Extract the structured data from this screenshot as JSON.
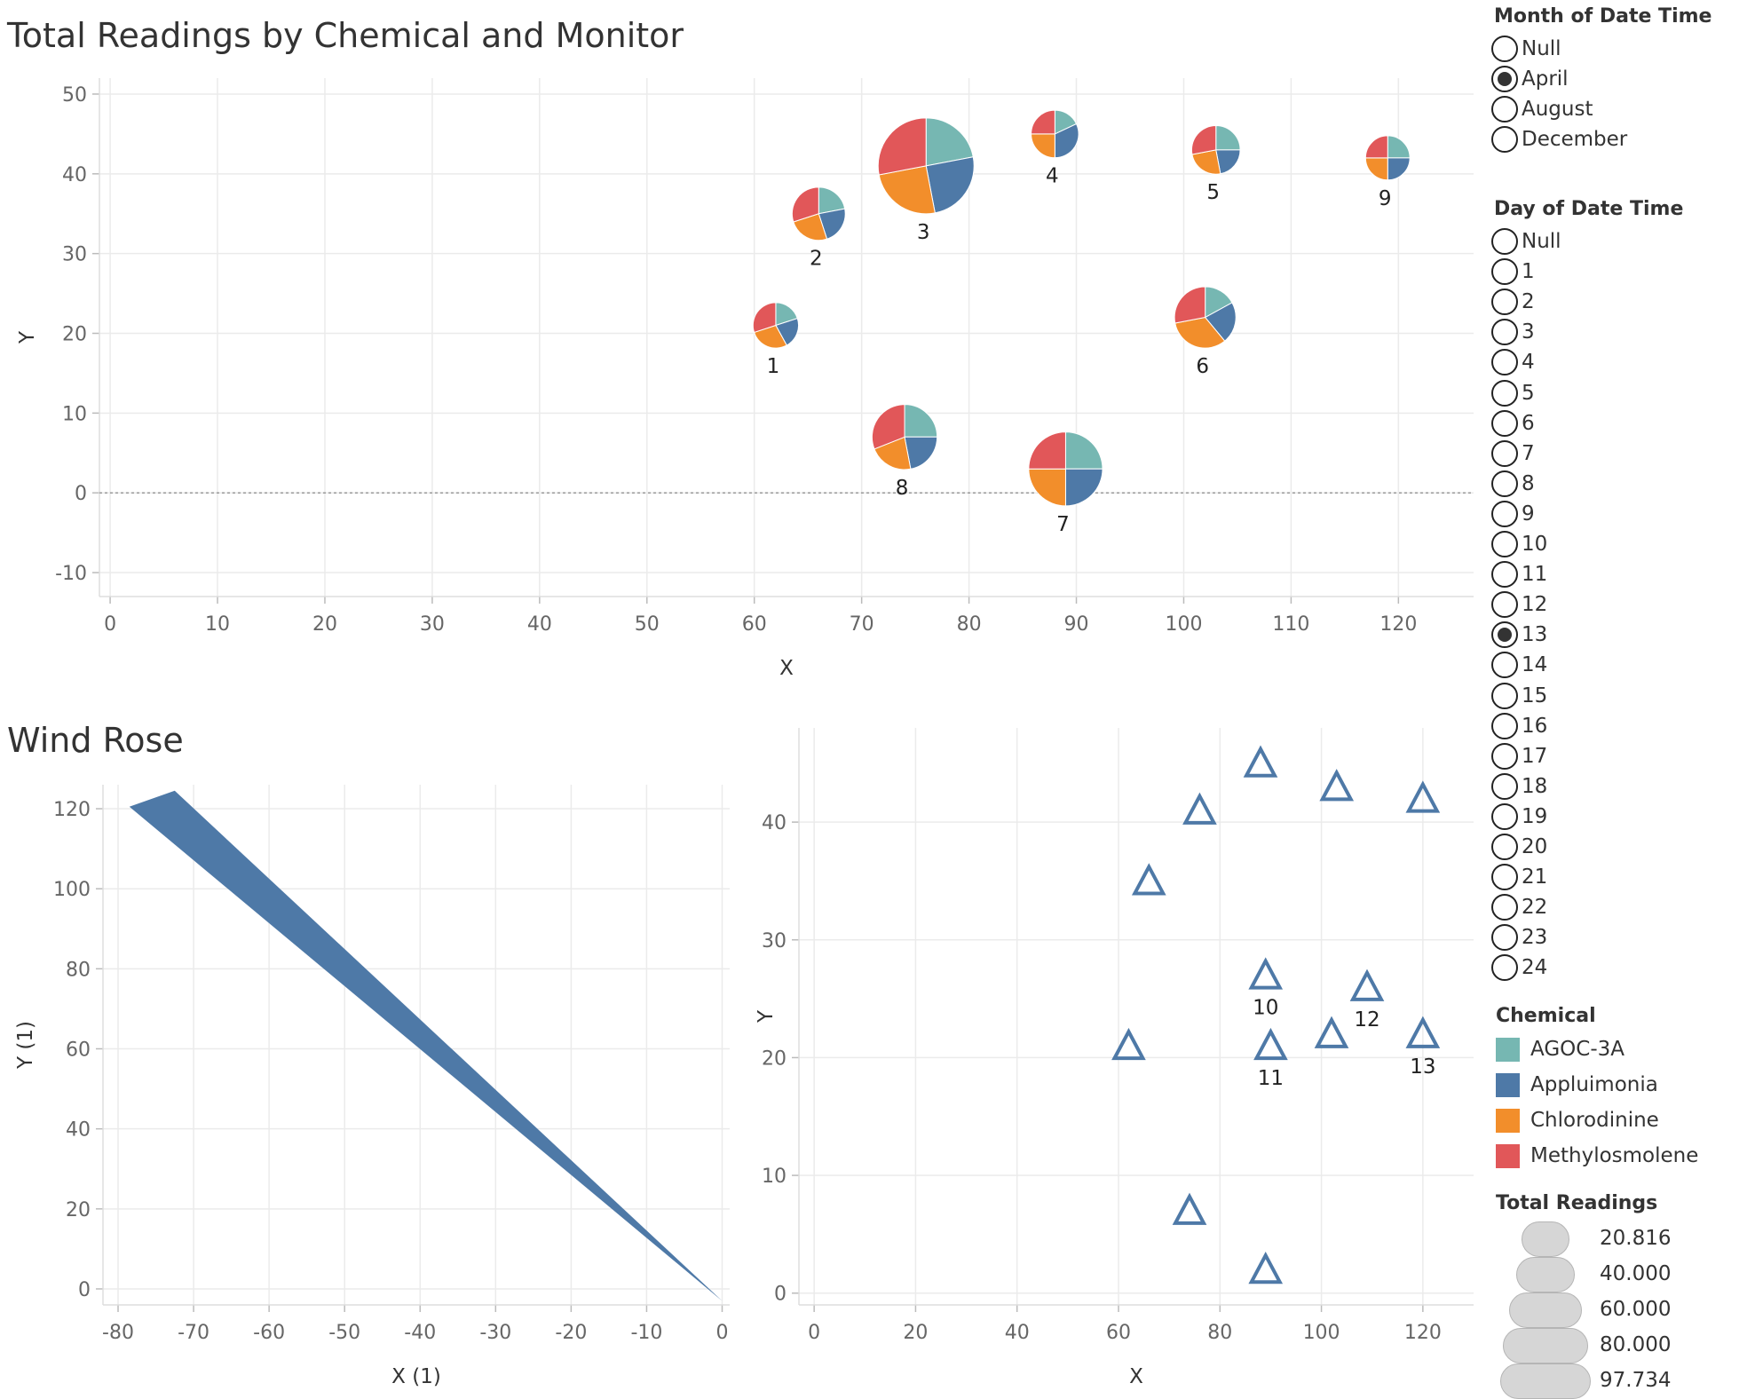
{
  "titles": {
    "top": "Total Readings by Chemical and Monitor",
    "bottom": "Wind Rose"
  },
  "colors": {
    "AGOC-3A": "#76b7b2",
    "Appluimonia": "#4e79a7",
    "Chlorodinine": "#f28e2b",
    "Methylosmolene": "#e15759",
    "wind": "#4e79a7",
    "triangle": "#4e79a7",
    "grid": "#ebebeb",
    "axis_text": "#666666"
  },
  "chart_data": [
    {
      "type": "scatter",
      "subtype": "pie-markers",
      "title": "Total Readings by Chemical and Monitor",
      "xlabel": "X",
      "ylabel": "Y",
      "xlim": [
        -1,
        127
      ],
      "ylim": [
        -13,
        52
      ],
      "xticks": [
        "0",
        "10",
        "20",
        "30",
        "40",
        "50",
        "60",
        "70",
        "80",
        "90",
        "100",
        "110",
        "120"
      ],
      "yticks": [
        "-10",
        "0",
        "10",
        "20",
        "30",
        "40",
        "50"
      ],
      "zero_line": true,
      "series_order": [
        "AGOC-3A",
        "Appluimonia",
        "Chlorodinine",
        "Methylosmolene"
      ],
      "points": [
        {
          "label": "1",
          "x": 62,
          "y": 21,
          "total": 22,
          "shares": [
            0.2,
            0.22,
            0.28,
            0.3
          ]
        },
        {
          "label": "2",
          "x": 66,
          "y": 35,
          "total": 30,
          "shares": [
            0.22,
            0.23,
            0.25,
            0.3
          ]
        },
        {
          "label": "3",
          "x": 76,
          "y": 41,
          "total": 97.734,
          "shares": [
            0.22,
            0.25,
            0.25,
            0.28
          ]
        },
        {
          "label": "4",
          "x": 88,
          "y": 45,
          "total": 24,
          "shares": [
            0.18,
            0.32,
            0.25,
            0.25
          ]
        },
        {
          "label": "5",
          "x": 103,
          "y": 43,
          "total": 25,
          "shares": [
            0.25,
            0.22,
            0.25,
            0.28
          ]
        },
        {
          "label": "6",
          "x": 102,
          "y": 22,
          "total": 40,
          "shares": [
            0.17,
            0.22,
            0.33,
            0.28
          ]
        },
        {
          "label": "7",
          "x": 89,
          "y": 3,
          "total": 58,
          "shares": [
            0.25,
            0.25,
            0.25,
            0.25
          ]
        },
        {
          "label": "8",
          "x": 74,
          "y": 7,
          "total": 45,
          "shares": [
            0.25,
            0.22,
            0.22,
            0.31
          ]
        },
        {
          "label": "9",
          "x": 119,
          "y": 42,
          "total": 20.816,
          "shares": [
            0.25,
            0.25,
            0.25,
            0.25
          ]
        }
      ]
    },
    {
      "type": "area",
      "title": "Wind Rose",
      "xlabel": "X (1)",
      "ylabel": "Y (1)",
      "xlim": [
        -82,
        1
      ],
      "ylim": [
        -4,
        126
      ],
      "xticks": [
        "-80",
        "-70",
        "-60",
        "-50",
        "-40",
        "-30",
        "-20",
        "-10",
        "0"
      ],
      "yticks": [
        "0",
        "20",
        "40",
        "60",
        "80",
        "100",
        "120"
      ],
      "polygon": [
        [
          0,
          -3
        ],
        [
          -78.5,
          120.5
        ],
        [
          -72.5,
          124.5
        ]
      ]
    },
    {
      "type": "scatter",
      "subtype": "triangle-markers",
      "xlabel": "X",
      "ylabel": "Y",
      "xlim": [
        -3,
        130
      ],
      "ylim": [
        -1,
        48
      ],
      "xticks": [
        "0",
        "20",
        "40",
        "60",
        "80",
        "100",
        "120"
      ],
      "yticks": [
        "0",
        "10",
        "20",
        "30",
        "40"
      ],
      "points": [
        {
          "x": 88,
          "y": 45,
          "label": ""
        },
        {
          "x": 103,
          "y": 43,
          "label": ""
        },
        {
          "x": 120,
          "y": 42,
          "label": ""
        },
        {
          "x": 76,
          "y": 41,
          "label": ""
        },
        {
          "x": 66,
          "y": 35,
          "label": ""
        },
        {
          "x": 89,
          "y": 27,
          "label": "10"
        },
        {
          "x": 109,
          "y": 26,
          "label": "12"
        },
        {
          "x": 62,
          "y": 21,
          "label": ""
        },
        {
          "x": 90,
          "y": 21,
          "label": "11"
        },
        {
          "x": 102,
          "y": 22,
          "label": ""
        },
        {
          "x": 120,
          "y": 22,
          "label": "13"
        },
        {
          "x": 74,
          "y": 7,
          "label": ""
        },
        {
          "x": 89,
          "y": 2,
          "label": ""
        }
      ]
    }
  ],
  "filters": {
    "month": {
      "title": "Month of Date Time",
      "options": [
        "Null",
        "April",
        "August",
        "December"
      ],
      "selected": "April"
    },
    "day": {
      "title": "Day of Date Time",
      "options": [
        "Null",
        "1",
        "2",
        "3",
        "4",
        "5",
        "6",
        "7",
        "8",
        "9",
        "10",
        "11",
        "12",
        "13",
        "14",
        "15",
        "16",
        "17",
        "18",
        "19",
        "20",
        "21",
        "22",
        "23",
        "24"
      ],
      "selected": "13"
    }
  },
  "legend_chemical": {
    "title": "Chemical",
    "items": [
      "AGOC-3A",
      "Appluimonia",
      "Chlorodinine",
      "Methylosmolene"
    ]
  },
  "legend_size": {
    "title": "Total Readings",
    "items": [
      "20.816",
      "40.000",
      "60.000",
      "80.000",
      "97.734"
    ]
  }
}
